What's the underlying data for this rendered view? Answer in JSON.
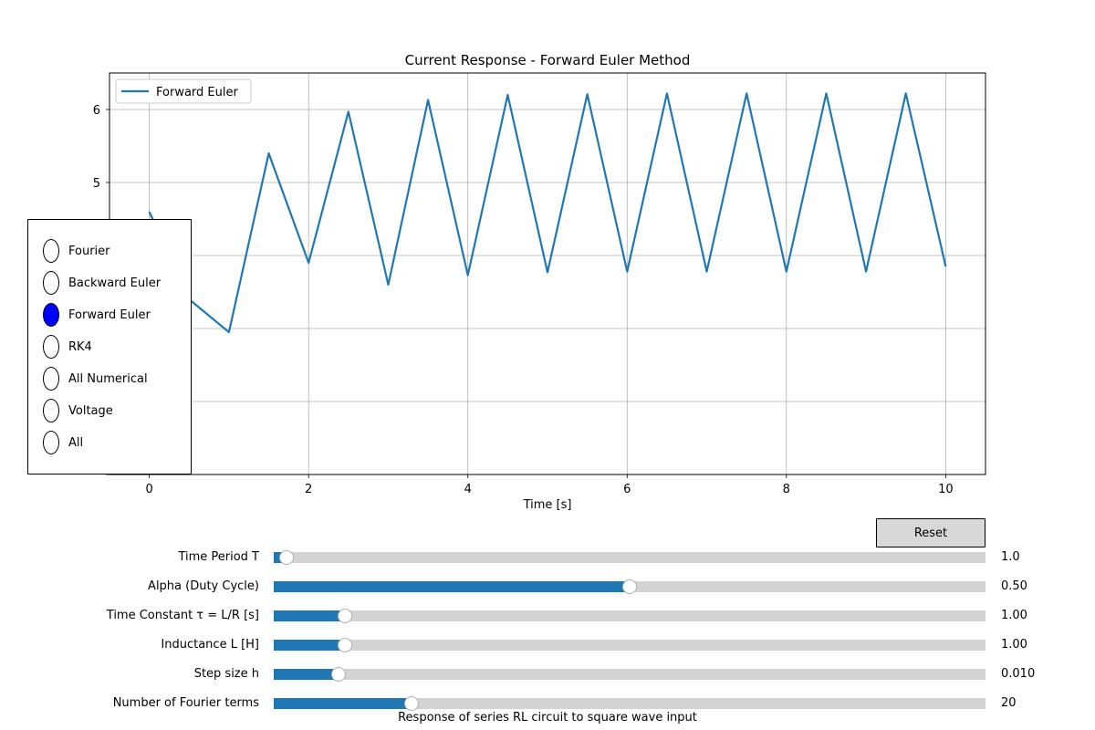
{
  "chart_data": {
    "type": "line",
    "title": "Current Response - Forward Euler Method",
    "xlabel": "Time [s]",
    "ylabel": "",
    "xlim": [
      -0.5,
      10.5
    ],
    "ylim": [
      1.0,
      6.5
    ],
    "x_ticks": [
      0,
      2,
      4,
      6,
      8,
      10
    ],
    "y_ticks": [
      1,
      2,
      3,
      4,
      5,
      6
    ],
    "y_tick_labels_visible": [
      "5",
      "6"
    ],
    "grid": true,
    "legend": "top-left",
    "series": [
      {
        "name": "Forward Euler",
        "color": "#1f77b4",
        "x": [
          0,
          0.5,
          1.0,
          1.5,
          2.0,
          2.5,
          3.0,
          3.5,
          4.0,
          4.5,
          5.0,
          5.5,
          6.0,
          6.5,
          7.0,
          7.5,
          8.0,
          8.5,
          9.0,
          9.5,
          10.0
        ],
        "y": [
          4.6,
          3.4,
          2.95,
          5.4,
          3.9,
          5.97,
          3.6,
          6.13,
          3.73,
          6.2,
          3.77,
          6.21,
          3.78,
          6.22,
          3.78,
          6.22,
          3.78,
          6.22,
          3.78,
          6.22,
          3.85
        ]
      }
    ]
  },
  "radio": {
    "options": [
      "Fourier",
      "Backward Euler",
      "Forward Euler",
      "RK4",
      "All Numerical",
      "Voltage",
      "All"
    ],
    "selected": "Forward Euler"
  },
  "reset_label": "Reset",
  "sliders": [
    {
      "label": "Time Period T",
      "value_text": "1.0",
      "fraction": 0.018
    },
    {
      "label": "Alpha (Duty Cycle)",
      "value_text": "0.50",
      "fraction": 0.5
    },
    {
      "label": "Time Constant τ = L/R [s]",
      "value_text": "1.00",
      "fraction": 0.1
    },
    {
      "label": "Inductance L [H]",
      "value_text": "1.00",
      "fraction": 0.1
    },
    {
      "label": "Step size h",
      "value_text": "0.010",
      "fraction": 0.091
    },
    {
      "label": "Number of Fourier terms",
      "value_text": "20",
      "fraction": 0.193
    }
  ],
  "caption": "Response of series RL circuit to square wave input",
  "colors": {
    "line": "#1f77b4",
    "selected_radio": "#0000ff",
    "slider_fill": "#1f77b4",
    "slider_track": "#d3d3d3"
  }
}
